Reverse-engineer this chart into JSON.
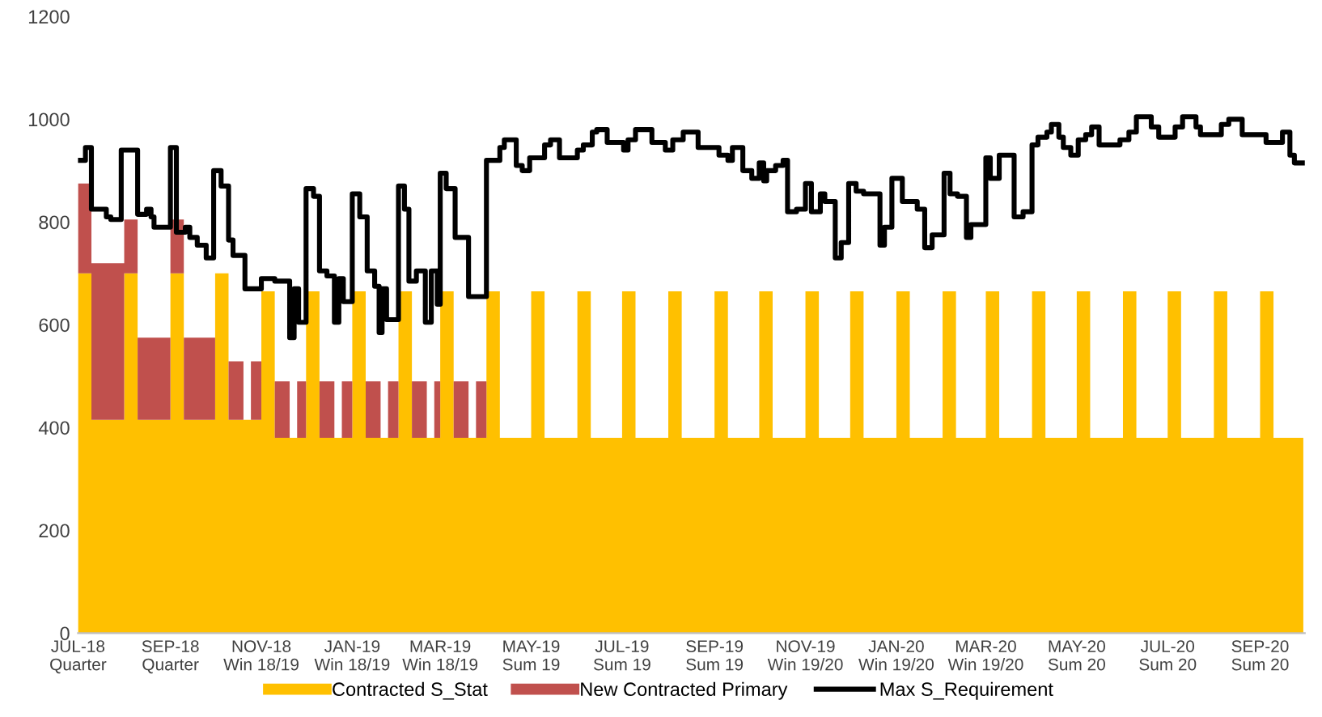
{
  "chart_data": {
    "type": "area",
    "stacked": true,
    "legend": "bottom",
    "grid": false,
    "xlim": [
      "2018-07-01",
      "2020-10-01"
    ],
    "ylim": [
      0,
      1200
    ],
    "yticks": [
      0,
      200,
      400,
      600,
      800,
      1000,
      1200
    ],
    "xticks": [
      {
        "value": "2018-07-01",
        "label": "JUL-18\nQuarter"
      },
      {
        "value": "2018-09-01",
        "label": "SEP-18\nQuarter"
      },
      {
        "value": "2018-11-01",
        "label": "NOV-18\nWin 18/19"
      },
      {
        "value": "2019-01-01",
        "label": "JAN-19\nWin 18/19"
      },
      {
        "value": "2019-03-01",
        "label": "MAR-19\nWin 18/19"
      },
      {
        "value": "2019-05-01",
        "label": "MAY-19\nSum 19"
      },
      {
        "value": "2019-07-01",
        "label": "JUL-19\nSum 19"
      },
      {
        "value": "2019-09-01",
        "label": "SEP-19\nSum 19"
      },
      {
        "value": "2019-11-01",
        "label": "NOV-19\nWin 19/20"
      },
      {
        "value": "2020-01-01",
        "label": "JAN-20\nWin 19/20"
      },
      {
        "value": "2020-03-01",
        "label": "MAR-20\nWin 19/20"
      },
      {
        "value": "2020-05-01",
        "label": "MAY-20\nSum 20"
      },
      {
        "value": "2020-07-01",
        "label": "JUL-20\nSum 20"
      },
      {
        "value": "2020-09-01",
        "label": "SEP-20\nSum 20"
      }
    ],
    "x": [
      "2018-07-01",
      "2018-07-10",
      "2018-07-20",
      "2018-07-25",
      "2018-08-01",
      "2018-08-10",
      "2018-08-20",
      "2018-08-25",
      "2018-09-01",
      "2018-09-10",
      "2018-09-20",
      "2018-09-25",
      "2018-10-01",
      "2018-10-10",
      "2018-10-20",
      "2018-10-25",
      "2018-11-01",
      "2018-11-10",
      "2018-11-20",
      "2018-11-25",
      "2018-12-01",
      "2018-12-10",
      "2018-12-20",
      "2018-12-25",
      "2019-01-01",
      "2019-01-10",
      "2019-01-20",
      "2019-01-25",
      "2019-02-01",
      "2019-02-10",
      "2019-02-20",
      "2019-02-25",
      "2019-03-01",
      "2019-03-10",
      "2019-03-20",
      "2019-03-25",
      "2019-04-01",
      "2019-04-10",
      "2019-04-20",
      "2019-04-25",
      "2019-05-01",
      "2019-05-10",
      "2019-05-20",
      "2019-05-25",
      "2019-06-01",
      "2019-06-10",
      "2019-06-20",
      "2019-06-25",
      "2019-07-01",
      "2019-07-10",
      "2019-07-20",
      "2019-07-25",
      "2019-08-01",
      "2019-08-10",
      "2019-08-20",
      "2019-08-25",
      "2019-09-01",
      "2019-09-10",
      "2019-09-20",
      "2019-09-25",
      "2019-10-01",
      "2019-10-10",
      "2019-10-20",
      "2019-10-25",
      "2019-11-01",
      "2019-11-10",
      "2019-11-20",
      "2019-11-25",
      "2019-12-01",
      "2019-12-10",
      "2019-12-20",
      "2019-12-25",
      "2020-01-01",
      "2020-01-10",
      "2020-01-20",
      "2020-01-25",
      "2020-02-01",
      "2020-02-10",
      "2020-02-20",
      "2020-02-25",
      "2020-03-01",
      "2020-03-10",
      "2020-03-20",
      "2020-03-25",
      "2020-04-01",
      "2020-04-10",
      "2020-04-20",
      "2020-04-25",
      "2020-05-01",
      "2020-05-10",
      "2020-05-20",
      "2020-05-25",
      "2020-06-01",
      "2020-06-10",
      "2020-06-20",
      "2020-06-25",
      "2020-07-01",
      "2020-07-10",
      "2020-07-20",
      "2020-07-25",
      "2020-08-01",
      "2020-08-10",
      "2020-08-20",
      "2020-08-25",
      "2020-09-01",
      "2020-09-10",
      "2020-09-20",
      "2020-09-25",
      "2020-09-30"
    ],
    "series": [
      {
        "name": "Contracted S_Stat",
        "color": "#ffc000",
        "values": [
          700,
          415,
          415,
          415,
          700,
          415,
          415,
          415,
          700,
          415,
          415,
          415,
          700,
          415,
          415,
          415,
          665,
          380,
          380,
          380,
          665,
          380,
          380,
          380,
          665,
          380,
          380,
          380,
          665,
          380,
          380,
          380,
          665,
          380,
          380,
          380,
          665,
          380,
          380,
          380,
          665,
          380,
          380,
          380,
          665,
          380,
          380,
          380,
          665,
          380,
          380,
          380,
          665,
          380,
          380,
          380,
          665,
          380,
          380,
          380,
          665,
          380,
          380,
          380,
          665,
          380,
          380,
          380,
          665,
          380,
          380,
          380,
          665,
          380,
          380,
          380,
          665,
          380,
          380,
          380,
          665,
          380,
          380,
          380,
          665,
          380,
          380,
          380,
          665,
          380,
          380,
          380,
          665,
          380,
          380,
          380,
          665,
          380,
          380,
          380,
          665,
          380,
          380,
          380,
          665,
          380,
          380,
          380,
          380
        ]
      },
      {
        "name": "New Contracted Primary",
        "color": "#c0504d",
        "values": [
          175,
          305,
          305,
          305,
          105,
          160,
          160,
          160,
          105,
          160,
          160,
          160,
          0,
          114,
          0,
          114,
          0,
          110,
          0,
          110,
          0,
          110,
          0,
          110,
          0,
          110,
          0,
          110,
          0,
          110,
          0,
          110,
          0,
          110,
          0,
          110,
          0,
          0,
          0,
          0,
          0,
          0,
          0,
          0,
          0,
          0,
          0,
          0,
          0,
          0,
          0,
          0,
          0,
          0,
          0,
          0,
          0,
          0,
          0,
          0,
          0,
          0,
          0,
          0,
          0,
          0,
          0,
          0,
          0,
          0,
          0,
          0,
          0,
          0,
          0,
          0,
          0,
          0,
          0,
          0,
          0,
          0,
          0,
          0,
          0,
          0,
          0,
          0,
          0,
          0,
          0,
          0,
          0,
          0,
          0,
          0,
          0,
          0,
          0,
          0,
          0,
          0,
          0,
          0,
          0,
          0,
          0,
          0,
          0
        ]
      },
      {
        "name": "Max S_Requirement",
        "type": "step",
        "color": "#000000",
        "line_style": "solid",
        "marker": "none",
        "x": [
          "2018-07-01",
          "2018-07-06",
          "2018-07-10",
          "2018-07-20",
          "2018-07-23",
          "2018-07-30",
          "2018-08-10",
          "2018-08-16",
          "2018-08-19",
          "2018-08-21",
          "2018-09-01",
          "2018-09-05",
          "2018-09-11",
          "2018-09-14",
          "2018-09-19",
          "2018-09-25",
          "2018-09-30",
          "2018-10-05",
          "2018-10-10",
          "2018-10-13",
          "2018-10-21",
          "2018-11-01",
          "2018-11-10",
          "2018-11-20",
          "2018-11-23",
          "2018-11-26",
          "2018-12-01",
          "2018-12-06",
          "2018-12-10",
          "2018-12-15",
          "2018-12-20",
          "2018-12-23",
          "2018-12-26",
          "2019-01-01",
          "2019-01-06",
          "2019-01-11",
          "2019-01-16",
          "2019-01-19",
          "2019-01-21",
          "2019-01-24",
          "2019-02-01",
          "2019-02-05",
          "2019-02-08",
          "2019-02-13",
          "2019-02-19",
          "2019-02-23",
          "2019-02-27",
          "2019-03-01",
          "2019-03-05",
          "2019-03-11",
          "2019-03-20",
          "2019-04-01",
          "2019-04-10",
          "2019-04-13",
          "2019-04-21",
          "2019-04-25",
          "2019-04-30",
          "2019-05-10",
          "2019-05-14",
          "2019-05-20",
          "2019-06-01",
          "2019-06-05",
          "2019-06-11",
          "2019-06-14",
          "2019-06-21",
          "2019-07-02",
          "2019-07-05",
          "2019-07-10",
          "2019-07-21",
          "2019-07-30",
          "2019-08-04",
          "2019-08-11",
          "2019-08-21",
          "2019-09-04",
          "2019-09-10",
          "2019-09-13",
          "2019-09-20",
          "2019-09-26",
          "2019-10-01",
          "2019-10-04",
          "2019-10-06",
          "2019-10-12",
          "2019-10-17",
          "2019-10-20",
          "2019-10-26",
          "2019-11-01",
          "2019-11-05",
          "2019-11-11",
          "2019-11-14",
          "2019-11-21",
          "2019-11-25",
          "2019-11-30",
          "2019-12-05",
          "2019-12-10",
          "2019-12-21",
          "2019-12-24",
          "2019-12-29",
          "2020-01-05",
          "2020-01-15",
          "2020-01-20",
          "2020-01-25",
          "2020-02-02",
          "2020-02-06",
          "2020-02-11",
          "2020-02-17",
          "2020-02-20",
          "2020-03-01",
          "2020-03-04",
          "2020-03-10",
          "2020-03-20",
          "2020-03-26",
          "2020-04-01",
          "2020-04-05",
          "2020-04-11",
          "2020-04-14",
          "2020-04-19",
          "2020-04-22",
          "2020-04-27",
          "2020-05-02",
          "2020-05-07",
          "2020-05-11",
          "2020-05-16",
          "2020-05-30",
          "2020-06-05",
          "2020-06-10",
          "2020-06-20",
          "2020-06-25",
          "2020-07-06",
          "2020-07-11",
          "2020-07-20",
          "2020-07-23",
          "2020-08-06",
          "2020-08-11",
          "2020-08-20",
          "2020-09-05",
          "2020-09-16",
          "2020-09-21",
          "2020-09-24",
          "2020-09-30"
        ],
        "values": [
          920,
          945,
          825,
          810,
          805,
          940,
          815,
          825,
          810,
          790,
          945,
          780,
          790,
          770,
          755,
          730,
          900,
          870,
          765,
          735,
          670,
          690,
          685,
          575,
          670,
          605,
          865,
          850,
          705,
          695,
          605,
          690,
          645,
          855,
          810,
          705,
          675,
          585,
          670,
          610,
          870,
          825,
          685,
          705,
          605,
          705,
          640,
          895,
          865,
          770,
          655,
          920,
          945,
          960,
          910,
          900,
          925,
          950,
          960,
          925,
          940,
          950,
          975,
          980,
          955,
          940,
          960,
          980,
          955,
          940,
          960,
          975,
          945,
          930,
          920,
          945,
          900,
          885,
          915,
          880,
          900,
          910,
          920,
          820,
          825,
          875,
          820,
          855,
          840,
          730,
          760,
          875,
          860,
          855,
          755,
          790,
          885,
          840,
          825,
          750,
          775,
          895,
          855,
          850,
          770,
          795,
          925,
          885,
          930,
          810,
          820,
          950,
          965,
          975,
          990,
          965,
          945,
          930,
          960,
          970,
          985,
          950,
          960,
          975,
          1005,
          985,
          965,
          985,
          1005,
          985,
          970,
          990,
          1000,
          970,
          955,
          975,
          930,
          915,
          915
        ]
      }
    ]
  }
}
